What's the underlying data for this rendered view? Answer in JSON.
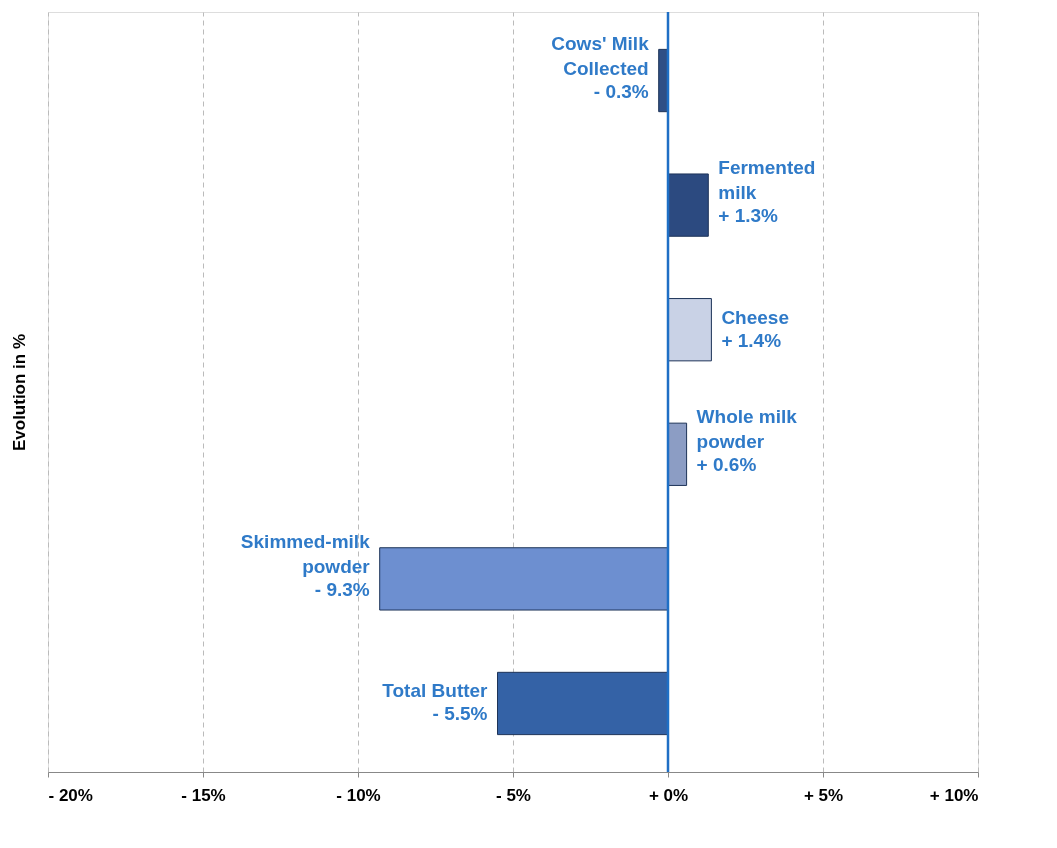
{
  "chart_data": {
    "type": "bar",
    "orientation": "horizontal",
    "ylabel": "Evolution in %",
    "categories": [
      "Cows' Milk Collected",
      "Fermented milk",
      "Cheese",
      "Whole milk powder",
      "Skimmed-milk powder",
      "Total Butter"
    ],
    "values": [
      -0.3,
      1.3,
      1.4,
      0.6,
      -9.3,
      -5.5
    ],
    "colors": [
      "#2f4f86",
      "#2c4a80",
      "#c9d2e6",
      "#8c9dc4",
      "#6d8fd0",
      "#3462a6"
    ],
    "value_labels": [
      "- 0.3%",
      "+ 1.3%",
      "+ 1.4%",
      "+ 0.6%",
      "- 9.3%",
      "- 5.5%"
    ],
    "xlim": [
      -20,
      10
    ],
    "xticks": [
      {
        "value": -20,
        "label": "- 20%"
      },
      {
        "value": -15,
        "label": "- 15%"
      },
      {
        "value": -10,
        "label": "- 10%"
      },
      {
        "value": -5,
        "label": "- 5%"
      },
      {
        "value": 0,
        "label": "+ 0%"
      },
      {
        "value": 5,
        "label": "+ 5%"
      },
      {
        "value": 10,
        "label": "+ 10%"
      }
    ],
    "ref_lines": [
      {
        "axis": "x",
        "value": 0,
        "color": "#1f6fc5"
      }
    ],
    "grid": "x",
    "line_style": "dashed",
    "tick_labels": "x",
    "legend": false
  }
}
